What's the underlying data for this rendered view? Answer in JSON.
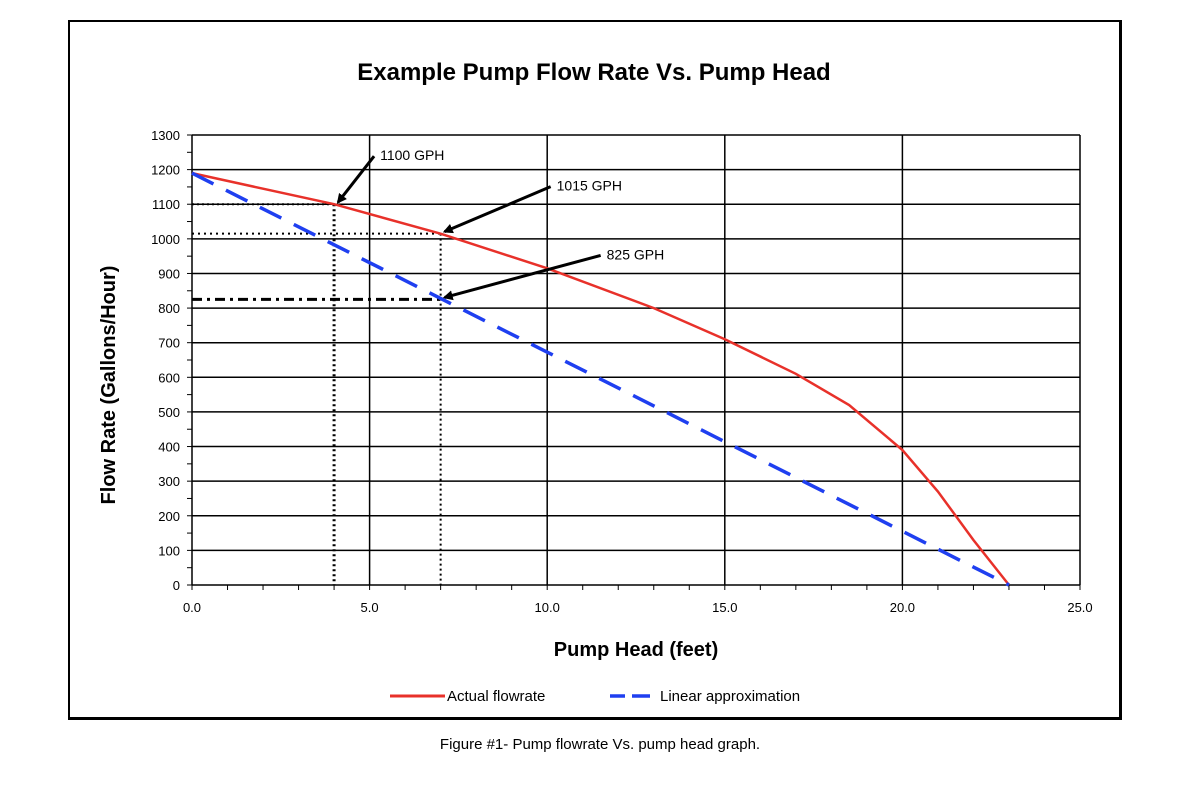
{
  "chart_data": {
    "type": "line",
    "title": "Example Pump Flow Rate Vs. Pump Head",
    "xlabel": "Pump Head (feet)",
    "ylabel": "Flow Rate (Gallons/Hour)",
    "xlim": [
      0,
      25
    ],
    "ylim": [
      0,
      1300
    ],
    "x_ticks": [
      "0.0",
      "5.0",
      "10.0",
      "15.0",
      "20.0",
      "25.0"
    ],
    "y_ticks": [
      "0",
      "100",
      "200",
      "300",
      "400",
      "500",
      "600",
      "700",
      "800",
      "900",
      "1000",
      "1100",
      "1200",
      "1300"
    ],
    "grid": true,
    "legend_position": "bottom",
    "series": [
      {
        "name": "Actual flowrate",
        "color": "#e8312a",
        "style": "solid",
        "points": [
          [
            0,
            1190
          ],
          [
            2,
            1145
          ],
          [
            4,
            1100
          ],
          [
            7,
            1015
          ],
          [
            10,
            915
          ],
          [
            13,
            800
          ],
          [
            15,
            710
          ],
          [
            17,
            610
          ],
          [
            18.5,
            520
          ],
          [
            20,
            390
          ],
          [
            21,
            270
          ],
          [
            22,
            130
          ],
          [
            23,
            0
          ]
        ]
      },
      {
        "name": "Linear approximation",
        "color": "#1f3ff0",
        "style": "dashed",
        "points": [
          [
            0,
            1190
          ],
          [
            23,
            0
          ]
        ]
      }
    ],
    "annotations": [
      {
        "label": "1100 GPH",
        "x": 4,
        "y": 1100
      },
      {
        "label": "1015 GPH",
        "x": 7,
        "y": 1015
      },
      {
        "label": "825 GPH",
        "x": 7,
        "y": 825
      }
    ]
  },
  "caption": "Figure #1- Pump flowrate Vs. pump head graph."
}
